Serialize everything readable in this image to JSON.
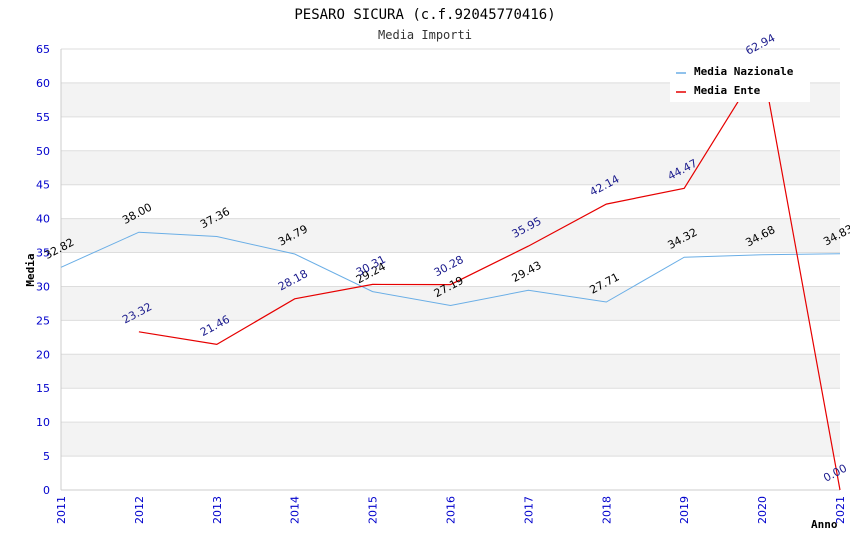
{
  "chart_data": {
    "type": "line",
    "title": "PESARO SICURA (c.f.92045770416)",
    "subtitle": "Media Importi",
    "xlabel": "Anno",
    "ylabel": "Media",
    "x": [
      "2011",
      "2012",
      "2013",
      "2014",
      "2015",
      "2016",
      "2017",
      "2018",
      "2019",
      "2020",
      "2021"
    ],
    "ylim": [
      0,
      65
    ],
    "yticks": [
      0,
      5,
      10,
      15,
      20,
      25,
      30,
      35,
      40,
      45,
      50,
      55,
      60,
      65
    ],
    "grid": "horizontal-bands",
    "legend_position": "top-right",
    "series": [
      {
        "name": "Media Nazionale",
        "color": "#6aaee6",
        "values": [
          32.82,
          38.0,
          37.36,
          34.79,
          29.24,
          27.19,
          29.43,
          27.71,
          34.32,
          34.68,
          34.83
        ],
        "labels": [
          "32.82",
          "38.00",
          "37.36",
          "34.79",
          "29.24",
          "27.19",
          "29.43",
          "27.71",
          "34.32",
          "34.68",
          "34.83"
        ]
      },
      {
        "name": "Media Ente",
        "color": "#e60000",
        "values": [
          null,
          23.32,
          21.46,
          28.18,
          30.31,
          30.28,
          35.95,
          42.14,
          44.47,
          62.94,
          0.0
        ],
        "labels": [
          null,
          "23.32",
          "21.46",
          "28.18",
          "30.31",
          "30.28",
          "35.95",
          "42.14",
          "44.47",
          "62.94",
          "0.00"
        ]
      }
    ]
  }
}
